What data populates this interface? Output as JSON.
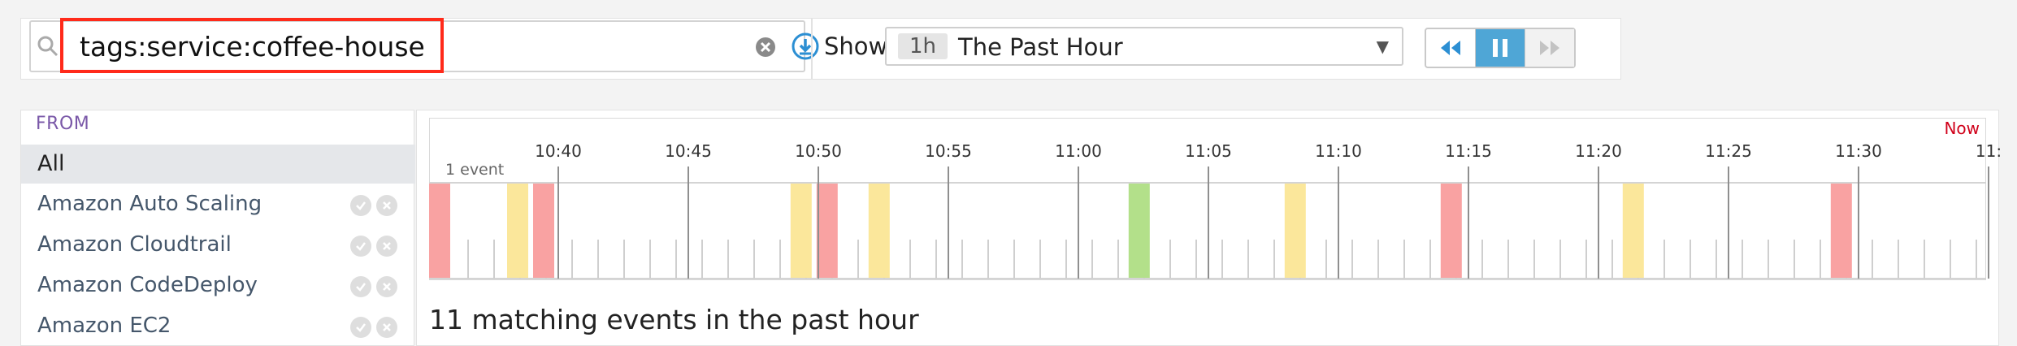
{
  "search": {
    "value": "tags:service:coffee-house",
    "highlight_color": "#ff2a1a"
  },
  "time_range": {
    "show_label": "Show",
    "badge": "1h",
    "label": "The Past Hour"
  },
  "playback": {
    "buttons": [
      "rewind",
      "pause",
      "fast-forward"
    ],
    "active": "pause"
  },
  "sources": {
    "header": "FROM",
    "items": [
      {
        "label": "All",
        "selected": true
      },
      {
        "label": "Amazon Auto Scaling"
      },
      {
        "label": "Amazon Cloudtrail"
      },
      {
        "label": "Amazon CodeDeploy"
      },
      {
        "label": "Amazon EC2"
      }
    ]
  },
  "timeline": {
    "now_label": "Now",
    "event_scale_label": "1 event",
    "ticks": [
      "10:40",
      "10:45",
      "10:50",
      "10:55",
      "11:00",
      "11:05",
      "11:10",
      "11:15",
      "11:20",
      "11:25",
      "11:30",
      "11:"
    ],
    "events": [
      {
        "minute": 0.0,
        "color": "#f9a2a2"
      },
      {
        "minute": 3.0,
        "color": "#fbe79b"
      },
      {
        "minute": 4.0,
        "color": "#f9a2a2"
      },
      {
        "minute": 13.9,
        "color": "#fbe79b"
      },
      {
        "minute": 14.9,
        "color": "#f9a2a2"
      },
      {
        "minute": 16.9,
        "color": "#fbe79b"
      },
      {
        "minute": 26.9,
        "color": "#b3e08a"
      },
      {
        "minute": 32.9,
        "color": "#fbe79b"
      },
      {
        "minute": 38.9,
        "color": "#f9a2a2"
      },
      {
        "minute": 45.9,
        "color": "#fbe79b"
      },
      {
        "minute": 53.9,
        "color": "#f9a2a2"
      }
    ]
  },
  "summary": {
    "matching": "11 matching events in the past hour"
  }
}
